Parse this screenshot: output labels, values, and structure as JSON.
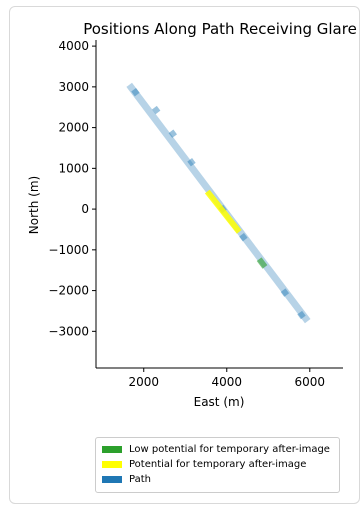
{
  "chart_data": {
    "type": "line",
    "title": "Positions Along Path Receiving Glare",
    "xlabel": "East (m)",
    "ylabel": "North (m)",
    "xlim": [
      850,
      6800
    ],
    "ylim": [
      -3900,
      4150
    ],
    "xticks": [
      2000,
      4000,
      6000
    ],
    "xtick_labels": [
      "2000",
      "4000",
      "6000"
    ],
    "yticks": [
      4000,
      3000,
      2000,
      1000,
      0,
      -1000,
      -2000,
      -3000
    ],
    "ytick_labels": [
      "4000",
      "3000",
      "2000",
      "1000",
      "0",
      "−1000",
      "−2000",
      "−3000"
    ],
    "grid": false,
    "legend_position": "bottom",
    "series": [
      {
        "name": "Path",
        "color": "#1f77b4",
        "x": [
          1650,
          5950
        ],
        "y": [
          3050,
          -2750
        ]
      },
      {
        "name": "Potential for temporary after-image",
        "color": "#ffff00",
        "x": [
          3530,
          4300
        ],
        "y": [
          430,
          -560
        ]
      },
      {
        "name": "Low potential for temporary after-image",
        "color": "#2ca02c",
        "x": [
          4780,
          4920
        ],
        "y": [
          -1230,
          -1420
        ]
      }
    ],
    "markers": {
      "x": [
        1800,
        2300,
        2700,
        3150,
        3900,
        4400,
        5400,
        5800
      ],
      "y": [
        2870,
        2430,
        1850,
        1150,
        0,
        -690,
        -2050,
        -2600
      ]
    },
    "legend": [
      {
        "label": "Low potential for temporary after-image",
        "color": "#2ca02c"
      },
      {
        "label": "Potential for temporary after-image",
        "color": "#ffff00"
      },
      {
        "label": "Path",
        "color": "#1f77b4"
      }
    ]
  }
}
